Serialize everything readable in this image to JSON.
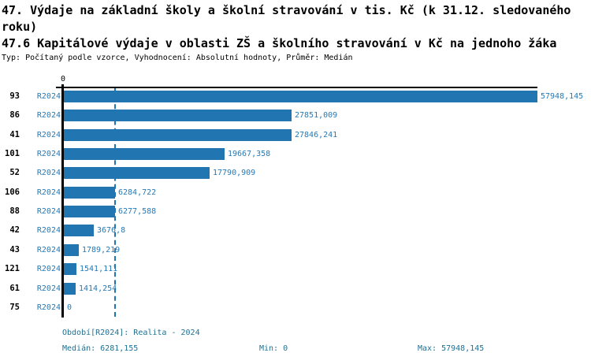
{
  "page": {
    "title": "47. Výdaje na základní školy a školní stravování v tis. Kč (k 31.12. sledovaného roku)",
    "subtitle": "47.6 Kapitálové výdaje v oblasti ZŠ a školního stravování v Kč na jednoho žáka",
    "meta_line": "Typ: Počítaný podle vzorce, Vyhodnocení: Absolutní hodnoty, Průměr: Medián"
  },
  "chart_data": {
    "type": "bar",
    "orientation": "horizontal",
    "title": "47.6 Kapitálové výdaje v oblasti ZŠ a školního stravování v Kč na jednoho žáka",
    "categories": [
      "93",
      "86",
      "41",
      "101",
      "52",
      "106",
      "88",
      "42",
      "43",
      "121",
      "61",
      "75"
    ],
    "series": [
      {
        "name": "R2024",
        "values": [
          57948.145,
          27851.009,
          27846.241,
          19667.358,
          17790.909,
          6284.722,
          6277.588,
          3676.8,
          1789.219,
          1541.111,
          1414.254,
          0
        ]
      }
    ],
    "value_labels": [
      "57948,145",
      "27851,009",
      "27846,241",
      "19667,358",
      "17790,909",
      "6284,722",
      "6277,588",
      "3676,8",
      "1789,219",
      "1541,111",
      "1414,254",
      "0"
    ],
    "period_label": "R2024",
    "axis_origin_label": "0",
    "xlim": [
      0,
      57948.145
    ],
    "median": 6281.155,
    "median_line": true,
    "grid": false,
    "legend_position": "none",
    "colors": {
      "bar": "#2176b2",
      "chart_text": "#2679b4",
      "footer_text": "#1e7094",
      "axis": "#000000"
    }
  },
  "footer": {
    "period_info": "Období[R2024]: Realita - 2024",
    "median_label": "Medián: 6281,155",
    "min_label": "Min: 0",
    "max_label": "Max: 57948,145"
  }
}
